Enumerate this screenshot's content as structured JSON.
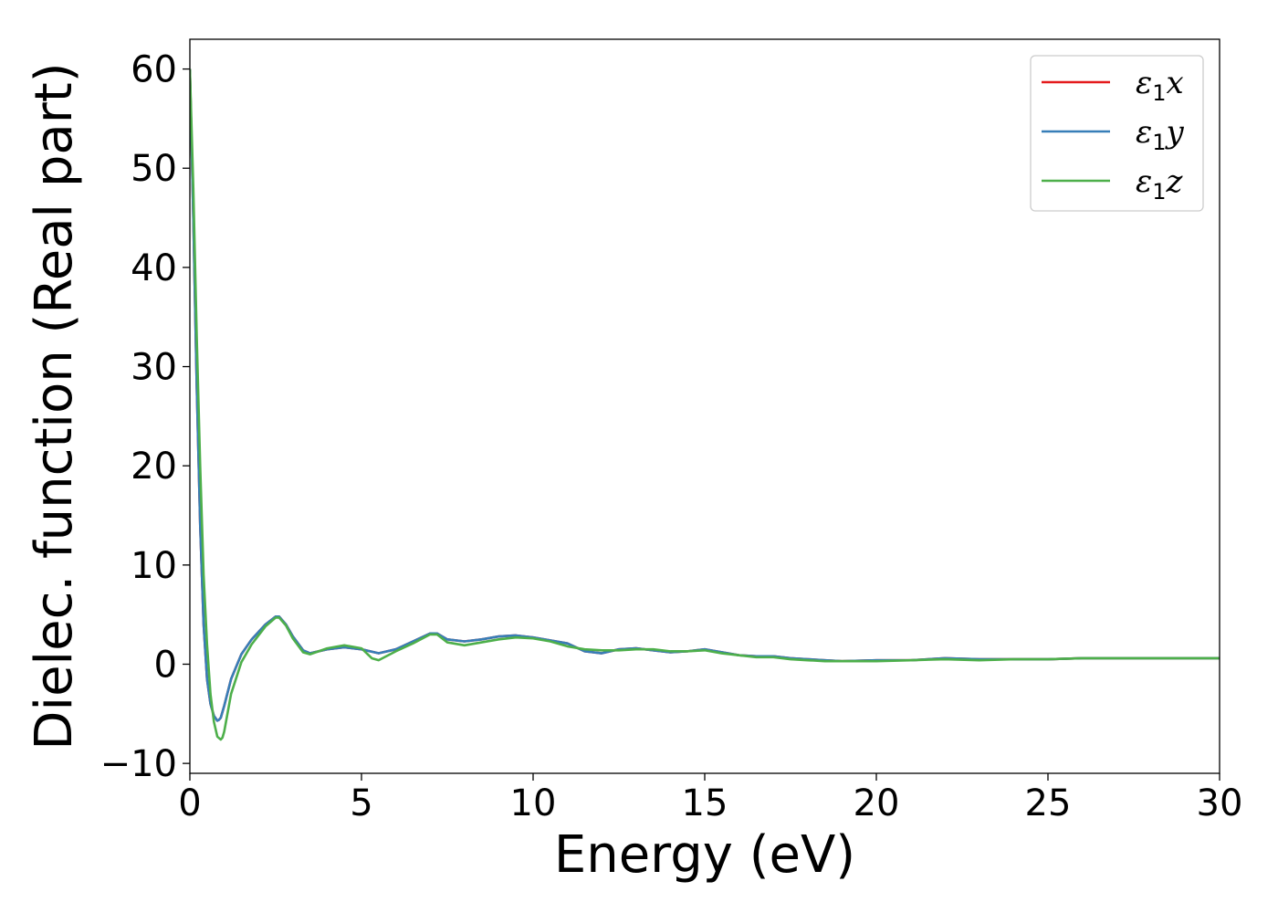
{
  "chart_data": {
    "type": "line",
    "title": "",
    "xlabel": "Energy (eV)",
    "ylabel": "Dielec. function (Real part)",
    "xlim": [
      0,
      30
    ],
    "ylim": [
      -11,
      63
    ],
    "xticks": [
      0,
      5,
      10,
      15,
      20,
      25,
      30
    ],
    "yticks": [
      -10,
      0,
      10,
      20,
      30,
      40,
      50,
      60
    ],
    "xtick_labels": [
      "0",
      "5",
      "10",
      "15",
      "20",
      "25",
      "30"
    ],
    "ytick_labels": [
      "−10",
      "0",
      "10",
      "20",
      "30",
      "40",
      "50",
      "60"
    ],
    "grid": false,
    "legend_position": "top-right",
    "series": [
      {
        "name": "ε₁x",
        "legend_base": "ε",
        "legend_sub": "1",
        "legend_var": "x",
        "color": "#e41a1c",
        "x": [
          0,
          0.1,
          0.2,
          0.3,
          0.4,
          0.5,
          0.6,
          0.7,
          0.8,
          0.85,
          0.9,
          1.0,
          1.2,
          1.5,
          1.8,
          2.2,
          2.5,
          2.6,
          2.8,
          3.0,
          3.3,
          3.5,
          4.0,
          4.5,
          5.0,
          5.5,
          6.0,
          6.5,
          7.0,
          7.2,
          7.5,
          8.0,
          8.5,
          9.0,
          9.5,
          10.0,
          10.5,
          11.0,
          11.5,
          12.0,
          12.5,
          13.0,
          13.5,
          14.0,
          14.5,
          15.0,
          15.5,
          16.0,
          16.5,
          17.0,
          17.5,
          18.0,
          18.5,
          19.0,
          20.0,
          21.0,
          22.0,
          23.0,
          24.0,
          25.0,
          26.0,
          27.0,
          28.0,
          29.0,
          30.0
        ],
        "y": [
          60,
          45,
          28,
          14,
          4,
          -1.5,
          -4,
          -5.2,
          -5.7,
          -5.6,
          -5.4,
          -4.2,
          -1.5,
          1.0,
          2.5,
          4.0,
          4.8,
          4.8,
          4.0,
          2.8,
          1.4,
          1.1,
          1.5,
          1.7,
          1.5,
          1.1,
          1.5,
          2.3,
          3.1,
          3.1,
          2.5,
          2.3,
          2.5,
          2.8,
          2.9,
          2.7,
          2.4,
          2.1,
          1.3,
          1.1,
          1.5,
          1.6,
          1.4,
          1.2,
          1.3,
          1.5,
          1.2,
          0.9,
          0.8,
          0.8,
          0.6,
          0.5,
          0.4,
          0.3,
          0.4,
          0.4,
          0.6,
          0.5,
          0.5,
          0.5,
          0.6,
          0.6,
          0.6,
          0.6,
          0.6
        ]
      },
      {
        "name": "ε₁y",
        "legend_base": "ε",
        "legend_sub": "1",
        "legend_var": "y",
        "color": "#377eb8",
        "x": [
          0,
          0.1,
          0.2,
          0.3,
          0.4,
          0.5,
          0.6,
          0.7,
          0.8,
          0.85,
          0.9,
          1.0,
          1.2,
          1.5,
          1.8,
          2.2,
          2.5,
          2.6,
          2.8,
          3.0,
          3.3,
          3.5,
          4.0,
          4.5,
          5.0,
          5.5,
          6.0,
          6.5,
          7.0,
          7.2,
          7.5,
          8.0,
          8.5,
          9.0,
          9.5,
          10.0,
          10.5,
          11.0,
          11.5,
          12.0,
          12.5,
          13.0,
          13.5,
          14.0,
          14.5,
          15.0,
          15.5,
          16.0,
          16.5,
          17.0,
          17.5,
          18.0,
          18.5,
          19.0,
          20.0,
          21.0,
          22.0,
          23.0,
          24.0,
          25.0,
          26.0,
          27.0,
          28.0,
          29.0,
          30.0
        ],
        "y": [
          60,
          45,
          28,
          14,
          4,
          -1.5,
          -4,
          -5.2,
          -5.7,
          -5.6,
          -5.4,
          -4.2,
          -1.5,
          1.0,
          2.5,
          4.0,
          4.8,
          4.8,
          4.0,
          2.8,
          1.4,
          1.1,
          1.5,
          1.7,
          1.5,
          1.1,
          1.5,
          2.3,
          3.1,
          3.1,
          2.5,
          2.3,
          2.5,
          2.8,
          2.9,
          2.7,
          2.4,
          2.1,
          1.3,
          1.1,
          1.5,
          1.6,
          1.4,
          1.2,
          1.3,
          1.5,
          1.2,
          0.9,
          0.8,
          0.8,
          0.6,
          0.5,
          0.4,
          0.3,
          0.4,
          0.4,
          0.6,
          0.5,
          0.5,
          0.5,
          0.6,
          0.6,
          0.6,
          0.6,
          0.6
        ]
      },
      {
        "name": "ε₁z",
        "legend_base": "ε",
        "legend_sub": "1",
        "legend_var": "z",
        "color": "#4daf4a",
        "x": [
          0,
          0.1,
          0.2,
          0.3,
          0.4,
          0.5,
          0.6,
          0.7,
          0.8,
          0.9,
          0.95,
          1.0,
          1.2,
          1.5,
          1.8,
          2.2,
          2.5,
          2.6,
          2.8,
          3.0,
          3.3,
          3.5,
          4.0,
          4.5,
          5.0,
          5.3,
          5.5,
          6.0,
          6.5,
          7.0,
          7.2,
          7.5,
          8.0,
          8.5,
          9.0,
          9.5,
          10.0,
          10.5,
          11.0,
          11.5,
          12.0,
          12.5,
          13.0,
          13.5,
          14.0,
          14.5,
          15.0,
          15.5,
          16.0,
          16.5,
          17.0,
          17.5,
          18.0,
          18.5,
          19.0,
          20.0,
          21.0,
          22.0,
          23.0,
          24.0,
          25.0,
          26.0,
          27.0,
          28.0,
          29.0,
          30.0
        ],
        "y": [
          60,
          48,
          33,
          20,
          9,
          2,
          -3,
          -5.8,
          -7.3,
          -7.6,
          -7.4,
          -6.8,
          -3.0,
          0.2,
          2.0,
          3.8,
          4.7,
          4.7,
          3.9,
          2.6,
          1.2,
          1.0,
          1.6,
          1.9,
          1.6,
          0.6,
          0.4,
          1.3,
          2.1,
          3.0,
          3.0,
          2.2,
          1.9,
          2.2,
          2.5,
          2.7,
          2.6,
          2.3,
          1.8,
          1.5,
          1.4,
          1.4,
          1.5,
          1.5,
          1.3,
          1.3,
          1.4,
          1.1,
          0.9,
          0.7,
          0.7,
          0.5,
          0.4,
          0.3,
          0.3,
          0.3,
          0.4,
          0.5,
          0.4,
          0.5,
          0.5,
          0.6,
          0.6,
          0.6,
          0.6,
          0.6
        ]
      }
    ]
  }
}
